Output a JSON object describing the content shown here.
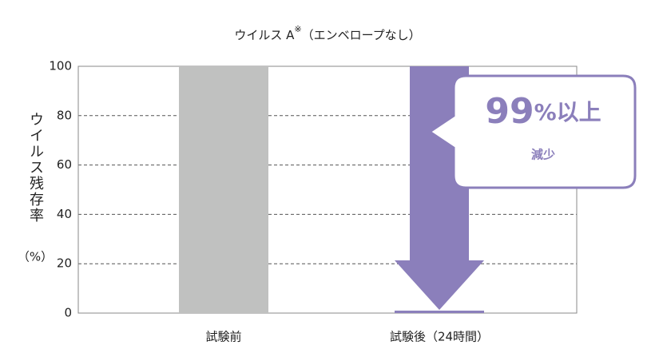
{
  "chart_data": {
    "type": "bar",
    "title": "ウイルス A",
    "title_mark": "※",
    "title_note": "（エンベロープなし）",
    "y_label": "ウイルス残存率",
    "y_label_unit": "（%）",
    "categories": [
      "試験前",
      "試験後（24時間）"
    ],
    "values": [
      100,
      1
    ],
    "colors": [
      "#c0c1c0",
      "#8b7fbb"
    ],
    "ylim": [
      0,
      100
    ],
    "yticks": [
      0,
      20,
      40,
      60,
      80,
      100
    ],
    "grid": true,
    "annotation": {
      "figure": "99",
      "unit": "%以上",
      "text": "減少"
    }
  }
}
